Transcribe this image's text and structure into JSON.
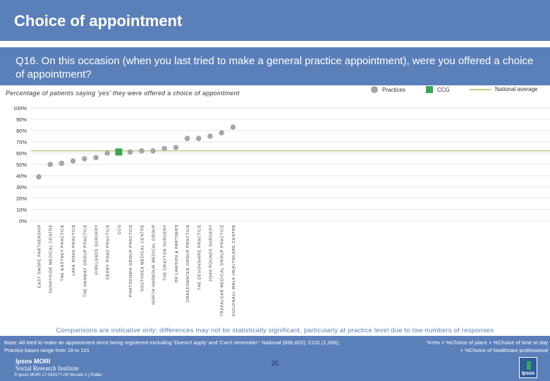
{
  "header": {
    "title": "Choice of appointment"
  },
  "question": {
    "text": "Q16. On this occasion (when you last tried to make a general practice appointment), were you offered a choice of appointment?"
  },
  "chart_subtitle": "Percentage of patients saying 'yes' they were offered a choice of appointment",
  "legend": {
    "practices": "Practices",
    "ccg": "CCG",
    "national": "National average"
  },
  "colors": {
    "practice": "#a6a6a6",
    "ccg": "#3aa655",
    "national": "#c6c48a"
  },
  "chart_data": {
    "type": "scatter",
    "ylim": [
      0,
      100
    ],
    "ytick_labels": [
      "0%",
      "10%",
      "20%",
      "30%",
      "40%",
      "50%",
      "60%",
      "70%",
      "80%",
      "90%",
      "100%"
    ],
    "categories": [
      "EAST SHORE PARTNERSHIP",
      "SUNNYSIDE MEDICAL CENTRE",
      "THE EASTNEY PRACTICE",
      "LAKE ROAD PRACTICE",
      "THE HANWAY GROUP PRACTICE",
      "KIRKLANDS SURGERY",
      "DERBY ROAD PRACTICE",
      "CCG",
      "PORTSDOWN GROUP PRACTICE",
      "SOUTHSEA MEDICAL CENTRE",
      "NORTH HARBOUR MEDICAL GROUP",
      "THE DRAYTON SURGERY",
      "DR LAWSON & PARTNERS",
      "DRAKESWATER GROUP PRACTICE",
      "THE DEVONSHIRE PRACTICE",
      "JOHN POUNDS SURGERY",
      "TRAFALGAR MEDICAL GROUP PRACTICE",
      "GUILDHALL WALK HEALTHCARE CENTRE"
    ],
    "values": [
      39,
      50,
      51,
      53,
      55,
      56,
      60,
      61,
      61,
      62,
      62,
      64,
      65,
      73,
      73,
      75,
      78,
      83
    ],
    "ccg_index": 7,
    "national_average": 62
  },
  "notes": "Comparisons are indicative only: differences may not be statistically significant, particularly at practice level due to low numbers of responses",
  "footer": {
    "base_line1": "Base: All tried to make an appointment since being registered excluding 'Doesn't apply' and 'Can't remember': National (696,602); CCG (1,266);",
    "base_line2": "Practice bases range from 18 to 101",
    "yes_line1": "%Yes = %Choice of place + %Choice of time or day",
    "yes_line2": "+ %Choice of healthcare professional",
    "logo_line1": "Ipsos MORI",
    "logo_line2": "Social Research Institute",
    "copyright": "© Ipsos MORI     17-043177-06 Version 1 | Public",
    "page_number": "25",
    "logo_box": "Ipsos"
  }
}
